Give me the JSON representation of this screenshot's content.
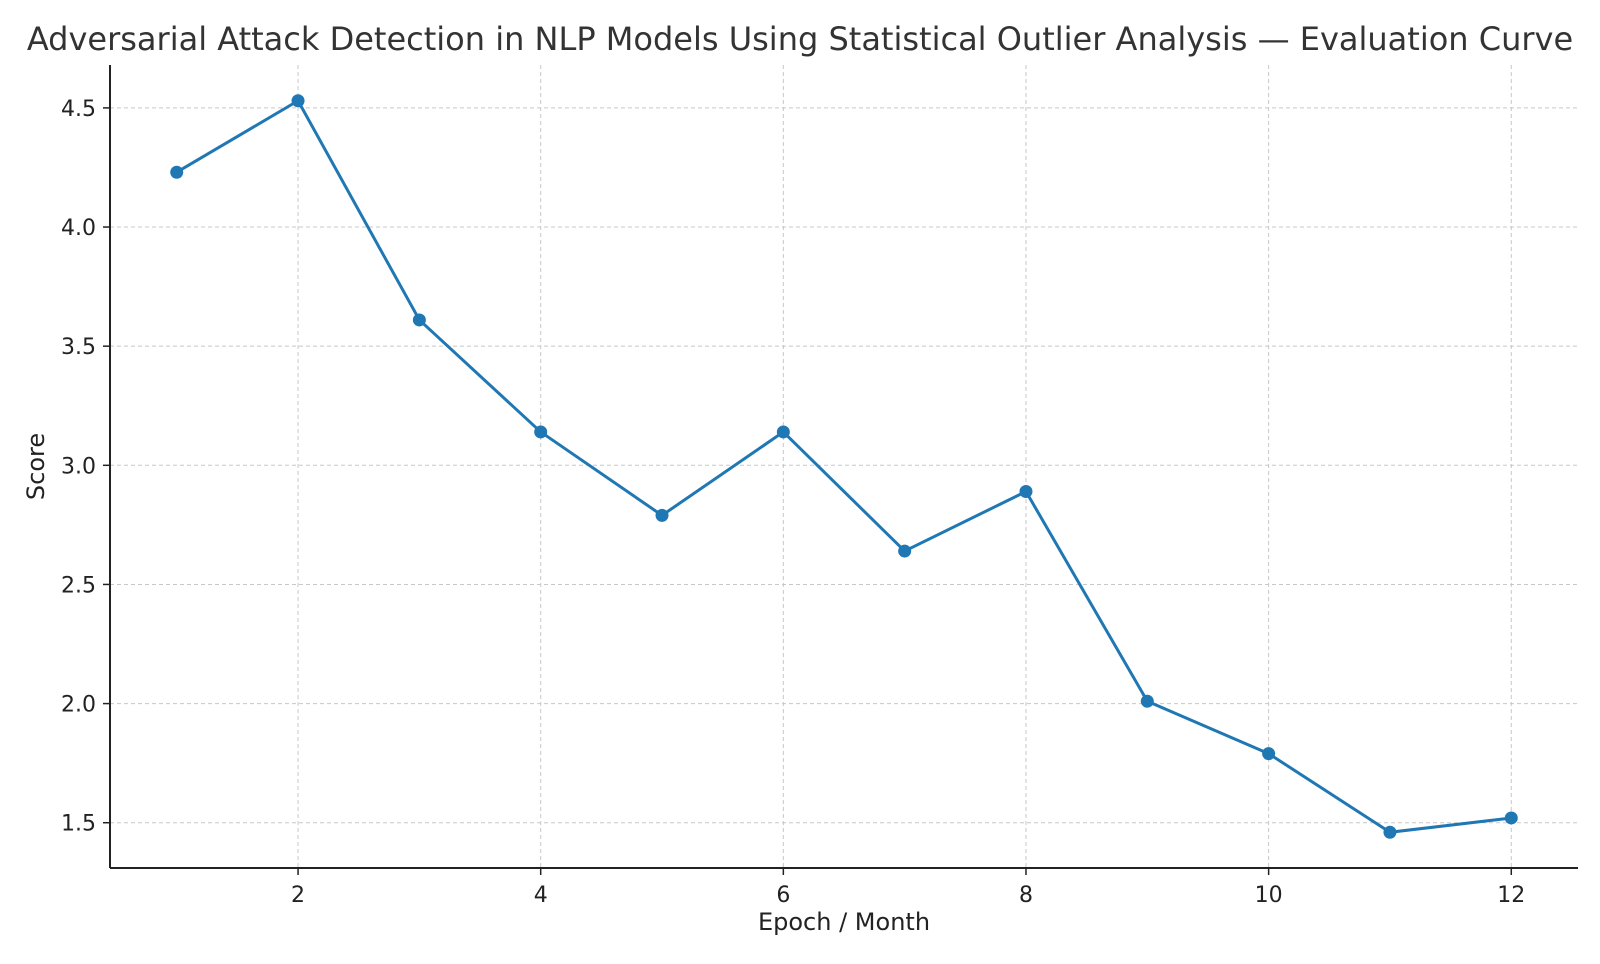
{
  "chart_data": {
    "type": "line",
    "title": "Adversarial Attack Detection in NLP Models Using Statistical Outlier Analysis — Evaluation Curve",
    "xlabel": "Epoch / Month",
    "ylabel": "Score",
    "x": [
      1,
      2,
      3,
      4,
      5,
      6,
      7,
      8,
      9,
      10,
      11,
      12
    ],
    "series": [
      {
        "values": [
          4.23,
          4.53,
          3.61,
          3.14,
          2.79,
          3.14,
          2.64,
          2.89,
          2.01,
          1.79,
          1.46,
          1.52
        ]
      }
    ],
    "xlim": [
      0.45,
      12.55
    ],
    "ylim": [
      1.31,
      4.68
    ],
    "xticks": [
      2,
      4,
      6,
      8,
      10,
      12
    ],
    "yticks": [
      1.5,
      2.0,
      2.5,
      3.0,
      3.5,
      4.0,
      4.5
    ],
    "grid": true,
    "colors": {
      "line": "#1f77b4",
      "grid": "#c8c8c8",
      "axis": "#222222"
    }
  }
}
